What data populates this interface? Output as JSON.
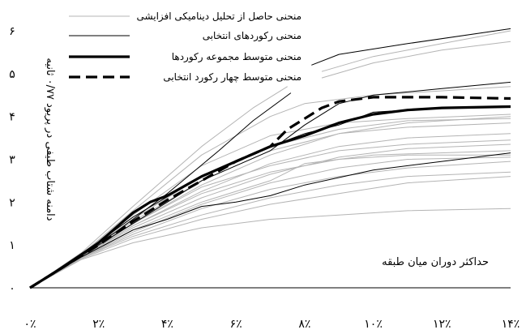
{
  "chart_data": {
    "type": "line",
    "xlabel": "حداکثر دوران میان طبقه",
    "ylabel": "دامنه شتاب طیفی در پریود ۰/۷۷ ثانیه",
    "xlim": [
      0,
      14
    ],
    "ylim": [
      0,
      6
    ],
    "x_ticks": [
      "۰٪",
      "۲٪",
      "۴٪",
      "۶٪",
      "۸٪",
      "۱۰٪",
      "۱۲٪",
      "۱۴٪"
    ],
    "y_ticks": [
      "۰",
      "۱",
      "۲",
      "۳",
      "۴",
      "۵",
      "۶"
    ],
    "legend_position": "top-right",
    "series": [
      {
        "name": "منحنی حاصل از تحلیل دینامیکی افزایشی",
        "style": "thin-gray",
        "color": "#b4b4b4",
        "curves": [
          [
            [
              0,
              0
            ],
            [
              1.5,
              0.75
            ],
            [
              3,
              1.5
            ],
            [
              5,
              2.4
            ],
            [
              7,
              3.1
            ],
            [
              9,
              3.6
            ],
            [
              11,
              3.85
            ],
            [
              14,
              4.0
            ]
          ],
          [
            [
              0,
              0
            ],
            [
              1.5,
              0.78
            ],
            [
              3,
              1.6
            ],
            [
              5,
              2.6
            ],
            [
              7,
              3.3
            ],
            [
              9,
              3.7
            ],
            [
              11,
              3.9
            ],
            [
              14,
              3.95
            ]
          ],
          [
            [
              0,
              0
            ],
            [
              1.5,
              0.72
            ],
            [
              3,
              1.45
            ],
            [
              5,
              2.25
            ],
            [
              7,
              2.9
            ],
            [
              9,
              3.3
            ],
            [
              11,
              3.5
            ],
            [
              14,
              3.6
            ]
          ],
          [
            [
              0,
              0
            ],
            [
              1.5,
              0.74
            ],
            [
              3,
              1.4
            ],
            [
              5,
              2.1
            ],
            [
              7,
              2.65
            ],
            [
              9,
              3.05
            ],
            [
              11,
              3.25
            ],
            [
              14,
              3.35
            ]
          ],
          [
            [
              0,
              0
            ],
            [
              1.5,
              0.7
            ],
            [
              3,
              1.3
            ],
            [
              5,
              1.95
            ],
            [
              7,
              2.45
            ],
            [
              9,
              2.8
            ],
            [
              11,
              3.0
            ],
            [
              14,
              3.05
            ]
          ],
          [
            [
              0,
              0
            ],
            [
              1.5,
              0.7
            ],
            [
              3,
              1.25
            ],
            [
              5,
              1.85
            ],
            [
              7,
              2.3
            ],
            [
              9,
              2.6
            ],
            [
              11,
              2.8
            ],
            [
              14,
              2.95
            ]
          ],
          [
            [
              0,
              0
            ],
            [
              1.5,
              0.7
            ],
            [
              3,
              1.2
            ],
            [
              5,
              1.7
            ],
            [
              7,
              2.1
            ],
            [
              9,
              2.4
            ],
            [
              11,
              2.6
            ],
            [
              14,
              2.7
            ]
          ],
          [
            [
              0,
              0
            ],
            [
              1.5,
              0.68
            ],
            [
              3,
              1.15
            ],
            [
              5,
              1.6
            ],
            [
              7,
              1.95
            ],
            [
              9,
              2.2
            ],
            [
              11,
              2.45
            ],
            [
              14,
              2.6
            ]
          ],
          [
            [
              0,
              0
            ],
            [
              1.5,
              0.66
            ],
            [
              3,
              1.05
            ],
            [
              5,
              1.4
            ],
            [
              7,
              1.6
            ],
            [
              9,
              1.7
            ],
            [
              11,
              1.8
            ],
            [
              14,
              1.85
            ]
          ],
          [
            [
              0,
              0
            ],
            [
              1.5,
              0.8
            ],
            [
              3,
              1.7
            ],
            [
              5,
              2.85
            ],
            [
              7,
              3.55
            ],
            [
              9,
              3.85
            ],
            [
              11,
              3.95
            ],
            [
              14,
              4.05
            ]
          ],
          [
            [
              0,
              0
            ],
            [
              1.5,
              0.76
            ],
            [
              3,
              1.55
            ],
            [
              5,
              2.5
            ],
            [
              7,
              3.2
            ],
            [
              9,
              3.6
            ],
            [
              11,
              3.75
            ],
            [
              14,
              3.85
            ]
          ],
          [
            [
              0,
              0
            ],
            [
              1.5,
              0.73
            ],
            [
              3,
              1.5
            ],
            [
              5,
              2.35
            ],
            [
              7,
              2.85
            ],
            [
              9,
              3.2
            ],
            [
              11,
              3.35
            ],
            [
              14,
              3.45
            ]
          ],
          [
            [
              0,
              0
            ],
            [
              1.5,
              0.78
            ],
            [
              3,
              1.8
            ],
            [
              5,
              3.1
            ],
            [
              7,
              4.0
            ],
            [
              8,
              4.3
            ],
            [
              10,
              4.5
            ],
            [
              14,
              4.7
            ]
          ],
          [
            [
              0,
              0
            ],
            [
              1.5,
              0.82
            ],
            [
              3,
              1.9
            ],
            [
              5,
              3.3
            ],
            [
              6.5,
              4.2
            ],
            [
              7.5,
              4.7
            ]
          ],
          [
            [
              8.5,
              5.05
            ],
            [
              10,
              5.4
            ],
            [
              12,
              5.7
            ],
            [
              14,
              6.0
            ]
          ],
          [
            [
              8.5,
              4.9
            ],
            [
              10,
              5.25
            ],
            [
              12,
              5.55
            ],
            [
              14,
              5.75
            ]
          ],
          [
            [
              0,
              0
            ],
            [
              1.5,
              0.7
            ],
            [
              3,
              1.35
            ],
            [
              5,
              2.0
            ],
            [
              7,
              2.5
            ],
            [
              8,
              2.9
            ],
            [
              10,
              3.1
            ],
            [
              14,
              3.2
            ]
          ],
          [
            [
              0,
              0
            ],
            [
              1.5,
              0.74
            ],
            [
              3,
              1.45
            ],
            [
              5,
              2.2
            ],
            [
              7,
              2.7
            ],
            [
              9,
              3.0
            ],
            [
              11,
              3.1
            ],
            [
              14,
              3.1
            ]
          ]
        ]
      },
      {
        "name": "منحنی رکوردهای انتخابی",
        "style": "thin-black",
        "color": "#000000",
        "curves": [
          [
            [
              0,
              0
            ],
            [
              1.5,
              0.8
            ],
            [
              2.5,
              1.3
            ],
            [
              4,
              2.2
            ],
            [
              5.5,
              3.2
            ],
            [
              6.5,
              3.9
            ],
            [
              7.6,
              4.55
            ]
          ],
          [
            [
              8.2,
              5.2
            ],
            [
              9,
              5.45
            ],
            [
              11,
              5.7
            ],
            [
              14,
              6.05
            ]
          ],
          [
            [
              0,
              0
            ],
            [
              1.5,
              0.75
            ],
            [
              3,
              1.5
            ],
            [
              5,
              2.5
            ],
            [
              7,
              3.2
            ],
            [
              8,
              3.8
            ],
            [
              9,
              4.3
            ],
            [
              10,
              4.5
            ],
            [
              12,
              4.65
            ],
            [
              14,
              4.8
            ]
          ],
          [
            [
              0,
              0
            ],
            [
              1.5,
              0.72
            ],
            [
              3,
              1.35
            ],
            [
              4,
              1.6
            ],
            [
              5,
              1.9
            ],
            [
              6,
              2.0
            ],
            [
              7,
              2.15
            ],
            [
              8,
              2.4
            ],
            [
              10,
              2.75
            ],
            [
              12,
              2.95
            ],
            [
              14,
              3.15
            ]
          ],
          [
            [
              0,
              0
            ],
            [
              1.5,
              0.78
            ],
            [
              3,
              1.65
            ],
            [
              5,
              2.6
            ],
            [
              7,
              3.3
            ],
            [
              8,
              3.6
            ],
            [
              9,
              3.8
            ],
            [
              10,
              4.1
            ],
            [
              12,
              4.2
            ],
            [
              14,
              4.25
            ]
          ]
        ]
      },
      {
        "name": "منحنی متوسط مجموعه رکوردها",
        "style": "thick-black",
        "color": "#000000",
        "curves": [
          [
            [
              0,
              0
            ],
            [
              1,
              0.5
            ],
            [
              2,
              1.05
            ],
            [
              3,
              1.75
            ],
            [
              3.5,
              2.0
            ],
            [
              4,
              2.15
            ],
            [
              5,
              2.6
            ],
            [
              6,
              2.95
            ],
            [
              7,
              3.3
            ],
            [
              8,
              3.55
            ],
            [
              9,
              3.85
            ],
            [
              10,
              4.05
            ],
            [
              11,
              4.15
            ],
            [
              12,
              4.2
            ],
            [
              14,
              4.23
            ]
          ]
        ]
      },
      {
        "name": "منحنی متوسط چهار رکورد انتخابی",
        "style": "dashed-black",
        "color": "#000000",
        "curves": [
          [
            [
              0,
              0
            ],
            [
              1,
              0.5
            ],
            [
              2,
              1.0
            ],
            [
              3,
              1.55
            ],
            [
              4,
              2.05
            ],
            [
              5,
              2.5
            ],
            [
              6,
              2.95
            ],
            [
              7,
              3.3
            ],
            [
              7.5,
              3.7
            ],
            [
              8,
              3.95
            ],
            [
              8.5,
              4.2
            ],
            [
              9,
              4.35
            ],
            [
              10,
              4.45
            ],
            [
              12,
              4.45
            ],
            [
              14,
              4.42
            ]
          ]
        ]
      }
    ]
  }
}
